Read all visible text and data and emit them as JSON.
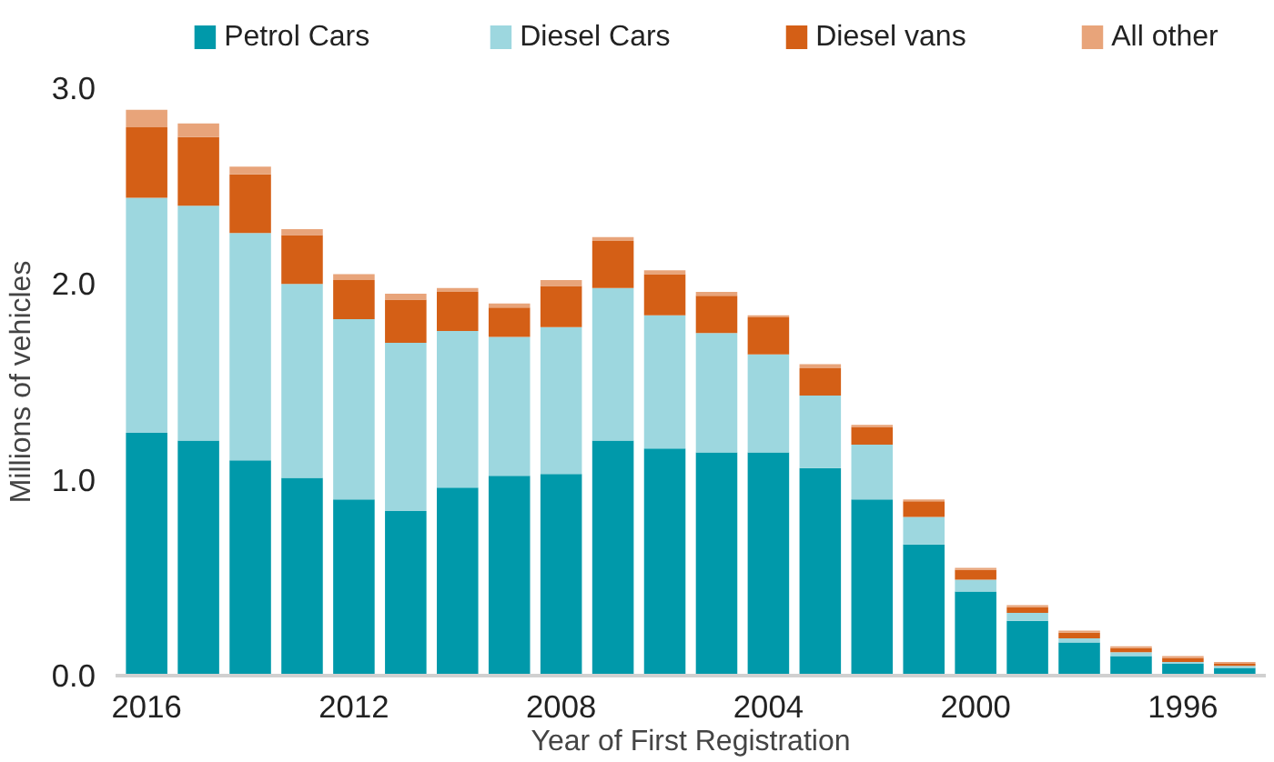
{
  "chart_data": {
    "type": "bar",
    "stacked": true,
    "xlabel": "Year of First Registration",
    "ylabel": "Millions of vehicles",
    "categories": [
      "2016",
      null,
      null,
      null,
      "2012",
      null,
      null,
      null,
      "2008",
      null,
      null,
      null,
      "2004",
      null,
      null,
      null,
      "2000",
      null,
      null,
      null,
      "1996",
      null
    ],
    "series": [
      {
        "name": "Petrol Cars",
        "color": "#0099aa",
        "values": [
          1.24,
          1.2,
          1.1,
          1.01,
          0.9,
          0.84,
          0.96,
          1.02,
          1.03,
          1.2,
          1.16,
          1.14,
          1.14,
          1.06,
          0.9,
          0.67,
          0.43,
          0.28,
          0.17,
          0.1,
          0.06,
          0.04
        ]
      },
      {
        "name": "Diesel Cars",
        "color": "#9dd7df",
        "values": [
          1.2,
          1.2,
          1.16,
          0.99,
          0.92,
          0.86,
          0.8,
          0.71,
          0.75,
          0.78,
          0.68,
          0.61,
          0.5,
          0.37,
          0.28,
          0.14,
          0.06,
          0.04,
          0.02,
          0.02,
          0.01,
          0.01
        ]
      },
      {
        "name": "Diesel vans",
        "color": "#d45f16",
        "values": [
          0.36,
          0.35,
          0.3,
          0.25,
          0.2,
          0.22,
          0.2,
          0.15,
          0.21,
          0.24,
          0.21,
          0.19,
          0.19,
          0.14,
          0.09,
          0.08,
          0.05,
          0.03,
          0.03,
          0.02,
          0.02,
          0.01
        ]
      },
      {
        "name": "All other",
        "color": "#e8a47a",
        "values": [
          0.09,
          0.07,
          0.04,
          0.03,
          0.03,
          0.03,
          0.02,
          0.02,
          0.03,
          0.02,
          0.02,
          0.02,
          0.01,
          0.02,
          0.01,
          0.01,
          0.01,
          0.01,
          0.01,
          0.01,
          0.01,
          0.01
        ]
      }
    ],
    "ylim": [
      0,
      3.0
    ],
    "yticks": [
      {
        "value": 0,
        "label": "0.0"
      },
      {
        "value": 1,
        "label": "1.0"
      },
      {
        "value": 2,
        "label": "2.0"
      },
      {
        "value": 3,
        "label": "3.0"
      }
    ],
    "grid": false,
    "legend": "top"
  }
}
